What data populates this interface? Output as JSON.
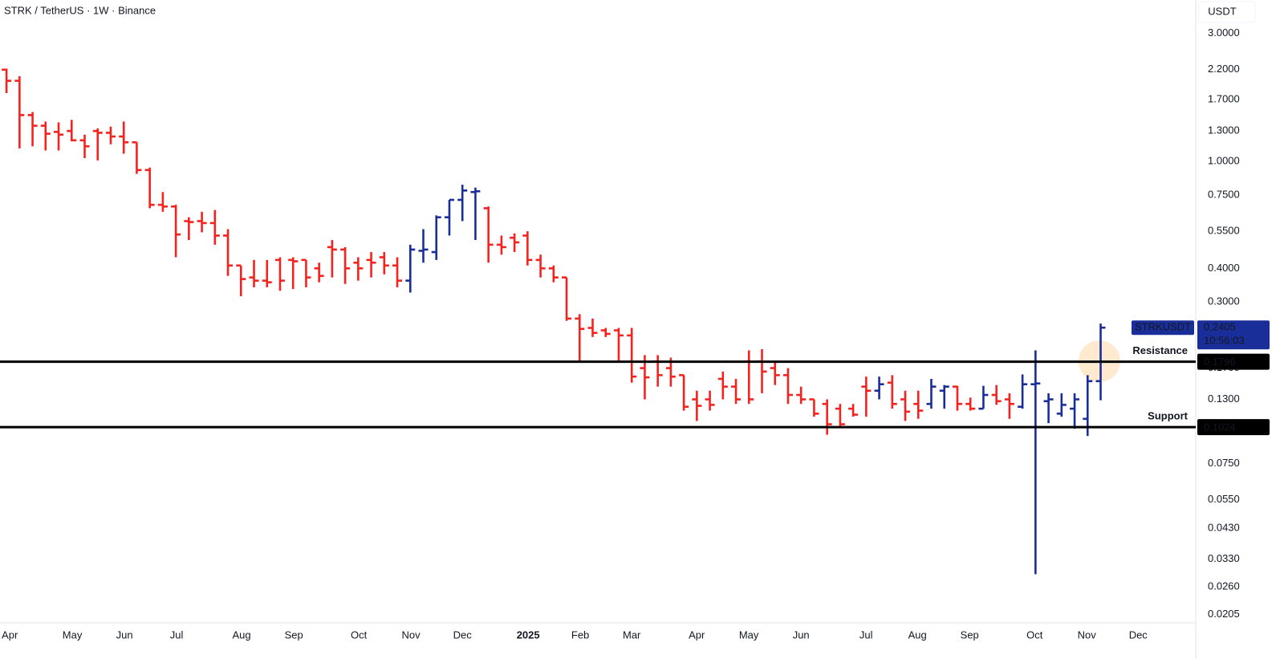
{
  "chart_data": {
    "type": "ohlc",
    "title": "STRK / TetherUS · 1W · Binance",
    "y_axis_unit": "USDT",
    "log_scale": true,
    "grid": false,
    "up_color": "#1a2e99",
    "down_color": "#f5221e",
    "categories": [
      null,
      null,
      null,
      null,
      null,
      null,
      null,
      null,
      null,
      null,
      null,
      null,
      null,
      null,
      null,
      null,
      null,
      null,
      null,
      null,
      null,
      null,
      null,
      null,
      null,
      null,
      null,
      null,
      null,
      null,
      null,
      null,
      null,
      null,
      null,
      null,
      null,
      null,
      null,
      null,
      null,
      null,
      null,
      null,
      null,
      null,
      null,
      null,
      null,
      null,
      null,
      null,
      null,
      null,
      null,
      null,
      null,
      null,
      null,
      null,
      null,
      null,
      null,
      null,
      null,
      null,
      null,
      null,
      null,
      null,
      null,
      null,
      null,
      null,
      null,
      null,
      null,
      null,
      null,
      null,
      null,
      null,
      null,
      null,
      null
    ],
    "xlim": [
      -0.5,
      91.3
    ],
    "xticks": [
      {
        "value": 0.25,
        "label": "Apr"
      },
      {
        "value": 5.05,
        "label": "May"
      },
      {
        "value": 9.06,
        "label": "Jun"
      },
      {
        "value": 13.06,
        "label": "Jul"
      },
      {
        "value": 18.05,
        "label": "Aug"
      },
      {
        "value": 22.06,
        "label": "Sep"
      },
      {
        "value": 27.05,
        "label": "Oct"
      },
      {
        "value": 31.05,
        "label": "Nov"
      },
      {
        "value": 35.0,
        "label": "Dec"
      },
      {
        "value": 40.05,
        "label": "2025"
      },
      {
        "value": 44.05,
        "label": "Feb"
      },
      {
        "value": 48.0,
        "label": "Mar"
      },
      {
        "value": 52.99,
        "label": "Apr"
      },
      {
        "value": 56.99,
        "label": "May"
      },
      {
        "value": 61.0,
        "label": "Jun"
      },
      {
        "value": 65.99,
        "label": "Jul"
      },
      {
        "value": 69.93,
        "label": "Aug"
      },
      {
        "value": 73.94,
        "label": "Sep"
      },
      {
        "value": 78.93,
        "label": "Oct"
      },
      {
        "value": 82.93,
        "label": "Nov"
      },
      {
        "value": 86.88,
        "label": "Dec"
      }
    ],
    "ylim": [
      0.0191,
      4.0
    ],
    "yticks": [
      {
        "value": 3,
        "label": "3.0000"
      },
      {
        "value": 2.2,
        "label": "2.2000"
      },
      {
        "value": 1.7,
        "label": "1.7000"
      },
      {
        "value": 1.3,
        "label": "1.3000"
      },
      {
        "value": 1,
        "label": "1.0000"
      },
      {
        "value": 0.75,
        "label": "0.7500"
      },
      {
        "value": 0.55,
        "label": "0.5500"
      },
      {
        "value": 0.4,
        "label": "0.4000"
      },
      {
        "value": 0.3,
        "label": "0.3000"
      },
      {
        "value": 0.17,
        "label": "0.1700"
      },
      {
        "value": 0.13,
        "label": "0.1300"
      },
      {
        "value": 0.075,
        "label": "0.0750"
      },
      {
        "value": 0.055,
        "label": "0.0550"
      },
      {
        "value": 0.043,
        "label": "0.0430"
      },
      {
        "value": 0.033,
        "label": "0.0330"
      },
      {
        "value": 0.026,
        "label": "0.0260"
      },
      {
        "value": 0.0205,
        "label": "0.0205"
      }
    ],
    "series": [
      {
        "name": "STRKUSDT",
        "open": [
          2.2,
          2.0,
          1.49,
          1.36,
          1.29,
          1.3,
          1.2,
          1.3,
          1.28,
          1.24,
          1.18,
          0.93,
          0.69,
          0.68,
          0.6,
          0.6,
          0.59,
          0.53,
          0.41,
          0.37,
          0.36,
          0.43,
          0.43,
          0.43,
          0.4,
          0.48,
          0.47,
          0.42,
          0.43,
          0.44,
          0.41,
          0.36,
          0.465,
          0.46,
          0.62,
          0.72,
          0.77,
          0.67,
          0.49,
          0.52,
          0.53,
          0.43,
          0.4,
          0.37,
          0.26,
          0.24,
          0.235,
          0.235,
          0.225,
          0.17,
          0.18,
          0.17,
          0.16,
          0.13,
          0.13,
          0.155,
          0.145,
          0.18,
          0.18,
          0.17,
          0.16,
          0.135,
          0.13,
          0.125,
          0.12,
          0.12,
          0.145,
          0.14,
          0.15,
          0.13,
          0.125,
          0.125,
          0.14,
          0.145,
          0.125,
          0.12,
          0.135,
          0.13,
          0.122,
          0.148,
          0.128,
          0.115,
          0.12,
          0.11,
          0.152
        ],
        "high": [
          2.22,
          2.08,
          1.53,
          1.41,
          1.4,
          1.43,
          1.26,
          1.33,
          1.35,
          1.41,
          1.18,
          0.95,
          0.77,
          0.69,
          0.62,
          0.65,
          0.66,
          0.56,
          0.41,
          0.43,
          0.43,
          0.44,
          0.44,
          0.43,
          0.42,
          0.51,
          0.48,
          0.44,
          0.46,
          0.46,
          0.44,
          0.49,
          0.56,
          0.63,
          0.72,
          0.82,
          0.8,
          0.68,
          0.53,
          0.54,
          0.55,
          0.45,
          0.41,
          0.37,
          0.27,
          0.26,
          0.24,
          0.24,
          0.24,
          0.19,
          0.19,
          0.186,
          0.16,
          0.14,
          0.14,
          0.165,
          0.155,
          0.198,
          0.2,
          0.18,
          0.17,
          0.145,
          0.13,
          0.13,
          0.125,
          0.125,
          0.158,
          0.158,
          0.16,
          0.14,
          0.14,
          0.155,
          0.147,
          0.146,
          0.132,
          0.146,
          0.147,
          0.137,
          0.161,
          0.198,
          0.137,
          0.137,
          0.137,
          0.16,
          0.249
        ],
        "low": [
          1.8,
          1.12,
          1.14,
          1.1,
          1.1,
          1.19,
          1.03,
          1.01,
          1.16,
          1.07,
          0.9,
          0.67,
          0.65,
          0.44,
          0.51,
          0.545,
          0.49,
          0.375,
          0.315,
          0.34,
          0.34,
          0.33,
          0.335,
          0.34,
          0.355,
          0.37,
          0.35,
          0.36,
          0.37,
          0.38,
          0.34,
          0.325,
          0.42,
          0.43,
          0.53,
          0.6,
          0.51,
          0.42,
          0.45,
          0.46,
          0.41,
          0.37,
          0.355,
          0.255,
          0.18,
          0.222,
          0.222,
          0.18,
          0.15,
          0.13,
          0.145,
          0.145,
          0.118,
          0.108,
          0.118,
          0.13,
          0.125,
          0.125,
          0.137,
          0.147,
          0.125,
          0.125,
          0.112,
          0.096,
          0.102,
          0.112,
          0.112,
          0.13,
          0.12,
          0.108,
          0.11,
          0.12,
          0.12,
          0.118,
          0.118,
          0.12,
          0.124,
          0.11,
          0.12,
          0.029,
          0.106,
          0.112,
          0.101,
          0.095,
          0.129
        ],
        "close": [
          2.0,
          1.49,
          1.36,
          1.27,
          1.26,
          1.2,
          1.14,
          1.28,
          1.24,
          1.18,
          0.93,
          0.69,
          0.68,
          0.535,
          0.595,
          0.59,
          0.53,
          0.41,
          0.365,
          0.36,
          0.355,
          0.36,
          0.425,
          0.37,
          0.375,
          0.47,
          0.4,
          0.4,
          0.42,
          0.41,
          0.36,
          0.47,
          0.47,
          0.62,
          0.72,
          0.78,
          0.775,
          0.49,
          0.48,
          0.5,
          0.43,
          0.4,
          0.37,
          0.26,
          0.238,
          0.23,
          0.228,
          0.225,
          0.158,
          0.157,
          0.16,
          0.158,
          0.122,
          0.123,
          0.124,
          0.145,
          0.13,
          0.13,
          0.165,
          0.16,
          0.135,
          0.13,
          0.115,
          0.105,
          0.105,
          0.114,
          0.14,
          0.148,
          0.125,
          0.117,
          0.118,
          0.145,
          0.145,
          0.125,
          0.12,
          0.135,
          0.128,
          0.125,
          0.148,
          0.149,
          0.13,
          0.124,
          0.13,
          0.152,
          0.2405
        ]
      }
    ],
    "countdown": "10:56:03",
    "hlines": [
      {
        "value": 0.1796,
        "label": "Resistance",
        "color": "#000000"
      },
      {
        "value": 0.1024,
        "label": "Support",
        "color": "#000000"
      }
    ]
  }
}
